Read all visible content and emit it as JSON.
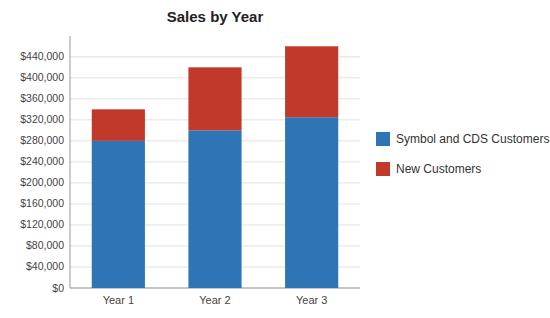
{
  "chart_data": {
    "type": "bar",
    "title": "Sales by Year",
    "categories": [
      "Year 1",
      "Year 2",
      "Year 3"
    ],
    "series": [
      {
        "name": "Symbol and CDS Customers",
        "color": "#2E75B6",
        "values": [
          280000,
          300000,
          325000
        ]
      },
      {
        "name": "New Customers",
        "color": "#C0392B",
        "values": [
          60000,
          120000,
          135000
        ]
      }
    ],
    "stacked": true,
    "ylim": [
      0,
      479600
    ],
    "yticks": [
      {
        "value": 0,
        "label": "$0"
      },
      {
        "value": 40000,
        "label": "$40,000"
      },
      {
        "value": 80000,
        "label": "$80,000"
      },
      {
        "value": 120000,
        "label": "$120,000"
      },
      {
        "value": 160000,
        "label": "$160,000"
      },
      {
        "value": 200000,
        "label": "$200,000"
      },
      {
        "value": 240000,
        "label": "$240,000"
      },
      {
        "value": 280000,
        "label": "$280,000"
      },
      {
        "value": 320000,
        "label": "$320,000"
      },
      {
        "value": 360000,
        "label": "$360,000"
      },
      {
        "value": 400000,
        "label": "$400,000"
      },
      {
        "value": 440000,
        "label": "$440,000"
      }
    ],
    "grid": true,
    "legend": "right"
  }
}
